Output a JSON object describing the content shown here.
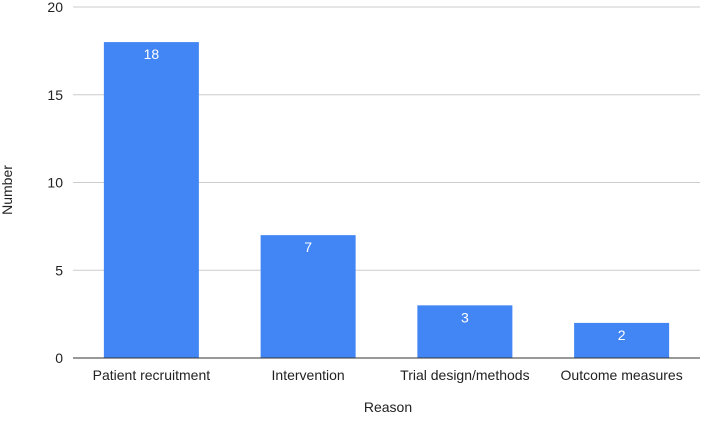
{
  "chart_data": {
    "type": "bar",
    "title": "",
    "xlabel": "Reason",
    "ylabel": "Number",
    "categories": [
      "Patient recruitment",
      "Intervention",
      "Trial design/methods",
      "Outcome measures"
    ],
    "values": [
      18,
      7,
      3,
      2
    ],
    "data_labels": [
      "18",
      "7",
      "3",
      "2"
    ],
    "ylim": [
      0,
      20
    ],
    "yticks": [
      0,
      5,
      10,
      15,
      20
    ],
    "grid": true,
    "legend": "none",
    "colors": {
      "bar": "#4285F4",
      "grid": "#CCCCCC",
      "axis": "#333333",
      "text": "#222222",
      "data_label": "#FFFFFF"
    }
  }
}
